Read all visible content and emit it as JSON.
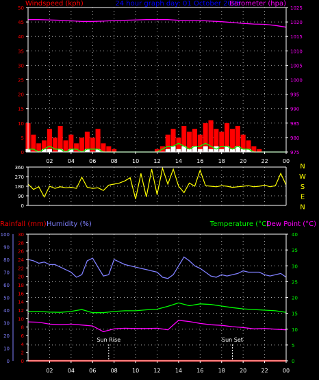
{
  "chart_data": [
    {
      "type": "line",
      "title": "24 hour graph day: 01 October 2025",
      "left_label": "Windspeed (kph)",
      "right_label": "Barometer (hpa)",
      "x_ticks": [
        "02",
        "04",
        "06",
        "08",
        "10",
        "12",
        "14",
        "16",
        "18",
        "20",
        "22",
        "00"
      ],
      "y_left_ticks": [
        0,
        5,
        10,
        15,
        20,
        25,
        30,
        35,
        40,
        45,
        50
      ],
      "y_left_range": [
        0,
        50
      ],
      "y_right_ticks": [
        975,
        980,
        985,
        990,
        995,
        1000,
        1005,
        1010,
        1015,
        1020,
        1025
      ],
      "y_right_range": [
        975,
        1025
      ],
      "grid": true,
      "series": [
        {
          "name": "Barometer",
          "color": "#ff00ff",
          "axis": "right",
          "x": [
            0,
            1,
            2,
            3,
            4,
            5,
            6,
            7,
            8,
            9,
            10,
            11,
            12,
            13,
            14,
            15,
            16,
            17,
            18,
            19,
            20,
            21,
            22,
            23,
            24
          ],
          "values": [
            1020.8,
            1020.8,
            1020.7,
            1020.6,
            1020.4,
            1020.2,
            1020.2,
            1020.3,
            1020.5,
            1020.6,
            1020.7,
            1020.8,
            1020.8,
            1020.8,
            1020.6,
            1020.5,
            1020.5,
            1020.3,
            1020.1,
            1019.8,
            1019.5,
            1019.3,
            1019.2,
            1018.8,
            1018.2
          ]
        },
        {
          "name": "Gust",
          "color": "#ff0000",
          "axis": "left",
          "x": [
            0,
            0.5,
            1,
            1.5,
            2,
            2.5,
            3,
            3.5,
            4,
            4.5,
            5,
            5.5,
            6,
            6.5,
            7,
            7.5,
            8,
            8.5,
            9,
            9.5,
            10,
            10.5,
            11,
            11.5,
            12,
            12.5,
            13,
            13.5,
            14,
            14.5,
            15,
            15.5,
            16,
            16.5,
            17,
            17.5,
            18,
            18.5,
            19,
            19.5,
            20,
            20.5,
            21,
            21.5,
            22,
            22.5,
            23,
            23.5,
            24
          ],
          "values": [
            10,
            6,
            3,
            4,
            8,
            5,
            9,
            4,
            6,
            3,
            5,
            7,
            5,
            8,
            3,
            2,
            1,
            0,
            0,
            0,
            0,
            0,
            0,
            0,
            1,
            2,
            6,
            8,
            5,
            9,
            7,
            8,
            6,
            10,
            11,
            8,
            7,
            10,
            8,
            9,
            6,
            4,
            2,
            1,
            0,
            0,
            0,
            0,
            0
          ]
        },
        {
          "name": "Wind",
          "color": "#ffffff",
          "axis": "left",
          "x": [
            0,
            0.5,
            1,
            1.5,
            2,
            2.5,
            3,
            3.5,
            4,
            4.5,
            5,
            5.5,
            6,
            6.5,
            7,
            7.5,
            8,
            8.5,
            9,
            9.5,
            10,
            10.5,
            11,
            11.5,
            12,
            12.5,
            13,
            13.5,
            14,
            14.5,
            15,
            15.5,
            16,
            16.5,
            17,
            17.5,
            18,
            18.5,
            19,
            19.5,
            20,
            20.5,
            21,
            21.5,
            22,
            22.5,
            23,
            23.5,
            24
          ],
          "values": [
            1,
            0,
            0,
            1,
            1,
            0,
            1,
            0,
            1,
            0,
            0,
            1,
            0,
            1,
            0,
            0,
            0,
            0,
            0,
            0,
            0,
            0,
            0,
            0,
            0,
            0,
            1,
            2,
            1,
            2,
            1,
            2,
            1,
            2,
            1,
            2,
            1,
            2,
            1,
            2,
            1,
            1,
            0,
            0,
            0,
            0,
            0,
            0,
            0
          ]
        },
        {
          "name": "Average",
          "color": "#00ff00",
          "axis": "left",
          "x": [
            0,
            0.5,
            1,
            1.5,
            2,
            2.5,
            3,
            3.5,
            4,
            4.5,
            5,
            5.5,
            6,
            6.5,
            7,
            7.5,
            8,
            8.5,
            9,
            9.5,
            10,
            10.5,
            11,
            11.5,
            12,
            12.5,
            13,
            13.5,
            14,
            14.5,
            15,
            15.5,
            16,
            16.5,
            17,
            17.5,
            18,
            18.5,
            19,
            19.5,
            20,
            20.5,
            21,
            21.5,
            22,
            22.5,
            23,
            23.5,
            24
          ],
          "values": [
            1,
            1,
            0,
            1,
            2,
            1,
            1,
            0,
            1,
            1,
            0,
            1,
            1,
            1,
            0,
            0,
            0,
            0,
            0,
            0,
            0,
            0,
            0,
            0,
            0,
            1,
            2,
            2,
            3,
            2,
            1,
            2,
            2,
            3,
            2,
            1,
            2,
            2,
            1,
            2,
            1,
            1,
            0,
            0,
            0,
            0,
            0,
            0,
            0
          ]
        }
      ]
    },
    {
      "type": "line",
      "left_label": "",
      "y_left_ticks": [
        0,
        90,
        180,
        270,
        360
      ],
      "y_left_range": [
        0,
        360
      ],
      "compass_labels": [
        "N",
        "W",
        "S",
        "E",
        "N"
      ],
      "grid": true,
      "series": [
        {
          "name": "Wind Direction",
          "color": "#ffff00",
          "axis": "left",
          "x": [
            0,
            0.5,
            1,
            1.5,
            2,
            2.5,
            3,
            3.5,
            4,
            4.5,
            5,
            5.5,
            6,
            6.5,
            7,
            7.5,
            8,
            8.5,
            9,
            9.5,
            10,
            10.5,
            11,
            11.5,
            12,
            12.5,
            13,
            13.5,
            14,
            14.5,
            15,
            15.5,
            16,
            16.5,
            17,
            17.5,
            18,
            18.5,
            19,
            19.5,
            20,
            20.5,
            21,
            21.5,
            22,
            22.5,
            23,
            23.5,
            24
          ],
          "values": [
            200,
            150,
            175,
            80,
            180,
            160,
            175,
            165,
            170,
            160,
            265,
            170,
            160,
            165,
            140,
            190,
            200,
            210,
            230,
            260,
            60,
            300,
            80,
            340,
            100,
            350,
            200,
            340,
            180,
            120,
            210,
            180,
            330,
            185,
            180,
            175,
            185,
            180,
            170,
            175,
            180,
            185,
            175,
            180,
            190,
            175,
            185,
            300,
            190
          ]
        }
      ]
    },
    {
      "type": "line",
      "left_labels": [
        "Rainfall (mm)",
        "Humidity (%)"
      ],
      "right_labels": [
        "Temperature (°C)",
        "Dew Point (°C)"
      ],
      "x_ticks": [
        "02",
        "04",
        "06",
        "08",
        "10",
        "12",
        "14",
        "16",
        "18",
        "20",
        "22",
        "00"
      ],
      "y_humidity_ticks": [
        0,
        10,
        20,
        30,
        40,
        50,
        60,
        70,
        80,
        90,
        100
      ],
      "y_humidity_range": [
        0,
        100
      ],
      "y_rain_ticks": [
        0,
        2,
        4,
        6,
        8,
        10,
        12,
        14,
        16,
        18,
        20,
        22,
        24,
        26,
        28,
        30
      ],
      "y_rain_range": [
        0,
        30
      ],
      "y_temp_ticks": [
        0,
        5,
        10,
        15,
        20,
        25,
        30,
        35,
        40
      ],
      "y_temp_range": [
        0,
        40
      ],
      "annotations": [
        "Sun Rise",
        "Sun Set"
      ],
      "grid": true,
      "series": [
        {
          "name": "Humidity",
          "color": "#8080ff",
          "axis": "humidity",
          "x": [
            0,
            0.5,
            1,
            1.5,
            2,
            2.5,
            3,
            3.5,
            4,
            4.5,
            5,
            5.5,
            6,
            6.5,
            7,
            7.5,
            8,
            8.5,
            9,
            9.5,
            10,
            10.5,
            11,
            11.5,
            12,
            12.5,
            13,
            13.5,
            14,
            14.5,
            15,
            15.5,
            16,
            16.5,
            17,
            17.5,
            18,
            18.5,
            19,
            19.5,
            20,
            20.5,
            21,
            21.5,
            22,
            22.5,
            23,
            23.5,
            24
          ],
          "values": [
            80,
            79,
            77,
            78,
            76,
            76,
            74,
            72,
            70,
            66,
            68,
            79,
            81,
            74,
            67,
            68,
            80,
            78,
            76,
            75,
            74,
            73,
            72,
            71,
            70,
            66,
            65,
            68,
            75,
            82,
            79,
            75,
            73,
            70,
            67,
            66,
            68,
            67,
            68,
            69,
            71,
            70,
            70,
            70,
            68,
            67,
            68,
            69,
            66
          ]
        },
        {
          "name": "Temperature",
          "color": "#00ff00",
          "axis": "temp",
          "x": [
            0,
            1,
            2,
            3,
            4,
            5,
            6,
            7,
            8,
            9,
            10,
            11,
            12,
            13,
            14,
            15,
            16,
            17,
            18,
            19,
            20,
            21,
            22,
            23,
            24
          ],
          "values": [
            15.5,
            15.6,
            15.4,
            15.3,
            15.6,
            16.2,
            15.2,
            15.2,
            15.6,
            15.8,
            15.8,
            16.1,
            16.3,
            17.2,
            18.3,
            17.4,
            18.0,
            17.8,
            17.3,
            16.8,
            16.4,
            16.2,
            16.0,
            15.8,
            15.3
          ]
        },
        {
          "name": "Dew Point",
          "color": "#ff00ff",
          "axis": "temp",
          "x": [
            0,
            1,
            2,
            3,
            4,
            5,
            6,
            7,
            8,
            9,
            10,
            11,
            12,
            13,
            14,
            15,
            16,
            17,
            18,
            19,
            20,
            21,
            22,
            23,
            24
          ],
          "values": [
            12.3,
            12.2,
            11.6,
            11.4,
            11.6,
            11.3,
            11.0,
            9.2,
            10.1,
            10.3,
            10.2,
            10.2,
            10.3,
            9.8,
            12.8,
            12.4,
            11.8,
            11.4,
            11.2,
            10.8,
            10.5,
            10.1,
            10.2,
            10.0,
            9.8
          ]
        },
        {
          "name": "Rainfall",
          "color": "#ff0000",
          "axis": "rain",
          "x": [
            0,
            24
          ],
          "values": [
            0,
            0
          ]
        }
      ]
    }
  ]
}
